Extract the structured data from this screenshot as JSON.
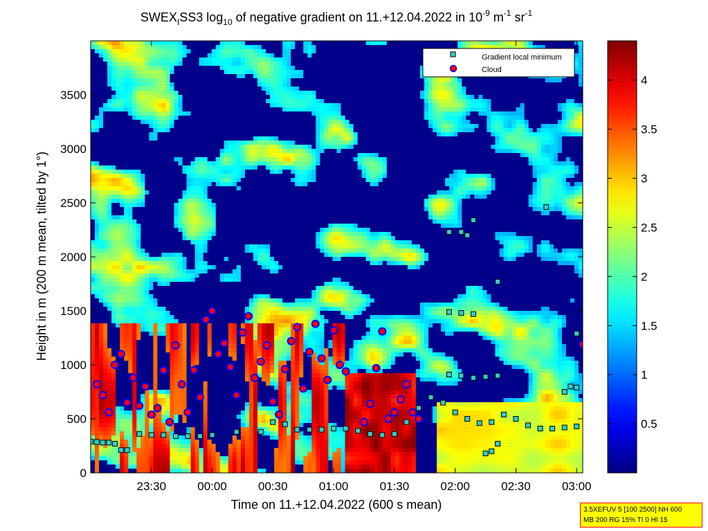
{
  "chart_data": {
    "type": "heatmap",
    "title": {
      "pre": "SWEX",
      "sub1": "I",
      "mid": "SS3 log",
      "sub2": "10",
      "post": " of negative gradient on 11.+12.04.2022 in 10",
      "sup1": "-9",
      "post2": " m",
      "sup2": "-1",
      "post3": " sr",
      "sup3": "-1"
    },
    "xlabel": "Time on 11.+12.04.2022 (600 s mean)",
    "ylabel": "Height in m (200 m mean, tilted by 1°)",
    "x_ticks": [
      "23:30",
      "00:00",
      "00:30",
      "01:00",
      "01:30",
      "02:00",
      "02:30",
      "03:00"
    ],
    "x_tick_hours": [
      23.5,
      24.0,
      24.5,
      25.0,
      25.5,
      26.0,
      26.5,
      27.0
    ],
    "xlim_hours": [
      23.0,
      27.05
    ],
    "y_ticks": [
      0,
      500,
      1000,
      1500,
      2000,
      2500,
      3000,
      3500
    ],
    "ylim": [
      0,
      4000
    ],
    "colorbar": {
      "ticks": [
        "0.5",
        "1",
        "1.5",
        "2",
        "2.5",
        "3",
        "3.5",
        "4"
      ],
      "tick_values": [
        0.5,
        1,
        1.5,
        2,
        2.5,
        3,
        3.5,
        4
      ],
      "range": [
        0,
        4.4
      ],
      "colormap": "jet"
    },
    "legend": {
      "position": "top-right",
      "entries": [
        {
          "label": "Gradient local minimum",
          "marker": "square",
          "color": "#33cccc"
        },
        {
          "label": "Cloud",
          "marker": "circle",
          "color": "#ff0000",
          "edge": "#0000ff"
        }
      ]
    },
    "series": [
      {
        "name": "Gradient local minimum",
        "points": [
          [
            23.0,
            290
          ],
          [
            23.05,
            285
          ],
          [
            23.1,
            280
          ],
          [
            23.15,
            280
          ],
          [
            23.2,
            270
          ],
          [
            23.25,
            210
          ],
          [
            23.3,
            210
          ],
          [
            23.4,
            360
          ],
          [
            23.5,
            350
          ],
          [
            23.6,
            350
          ],
          [
            23.7,
            340
          ],
          [
            23.8,
            340
          ],
          [
            23.9,
            340
          ],
          [
            24.0,
            350
          ],
          [
            24.2,
            380
          ],
          [
            24.4,
            380
          ],
          [
            24.5,
            470
          ],
          [
            24.6,
            450
          ],
          [
            24.7,
            400
          ],
          [
            24.8,
            400
          ],
          [
            24.9,
            400
          ],
          [
            25.0,
            410
          ],
          [
            25.1,
            410
          ],
          [
            25.2,
            390
          ],
          [
            25.3,
            360
          ],
          [
            25.4,
            350
          ],
          [
            25.5,
            360
          ],
          [
            25.6,
            470
          ],
          [
            25.7,
            600
          ],
          [
            25.8,
            700
          ],
          [
            25.9,
            650
          ],
          [
            26.0,
            560
          ],
          [
            26.1,
            500
          ],
          [
            26.2,
            460
          ],
          [
            26.3,
            470
          ],
          [
            26.4,
            540
          ],
          [
            26.5,
            500
          ],
          [
            26.6,
            440
          ],
          [
            26.7,
            410
          ],
          [
            26.8,
            410
          ],
          [
            26.9,
            420
          ],
          [
            27.0,
            430
          ],
          [
            25.95,
            2230
          ],
          [
            26.05,
            2230
          ],
          [
            26.1,
            2200
          ],
          [
            26.15,
            2340
          ],
          [
            26.35,
            1770
          ],
          [
            26.75,
            2460
          ],
          [
            25.95,
            1490
          ],
          [
            26.05,
            1480
          ],
          [
            26.15,
            1470
          ],
          [
            25.95,
            910
          ],
          [
            26.05,
            900
          ],
          [
            26.15,
            880
          ],
          [
            26.25,
            890
          ],
          [
            26.35,
            900
          ],
          [
            27.0,
            1290
          ],
          [
            27.1,
            1290
          ],
          [
            26.9,
            750
          ],
          [
            26.95,
            800
          ],
          [
            27.0,
            790
          ],
          [
            26.25,
            180
          ],
          [
            26.3,
            200
          ],
          [
            26.35,
            270
          ]
        ]
      },
      {
        "name": "Cloud",
        "points": [
          [
            23.05,
            820
          ],
          [
            23.1,
            720
          ],
          [
            23.15,
            560
          ],
          [
            23.2,
            1000
          ],
          [
            23.25,
            1100
          ],
          [
            23.3,
            650
          ],
          [
            23.35,
            880
          ],
          [
            23.4,
            620
          ],
          [
            23.45,
            800
          ],
          [
            23.5,
            540
          ],
          [
            23.55,
            600
          ],
          [
            23.6,
            950
          ],
          [
            23.65,
            470
          ],
          [
            23.7,
            1180
          ],
          [
            23.75,
            820
          ],
          [
            23.8,
            560
          ],
          [
            23.85,
            950
          ],
          [
            23.9,
            700
          ],
          [
            23.95,
            1420
          ],
          [
            24.0,
            1500
          ],
          [
            24.05,
            1100
          ],
          [
            24.1,
            1200
          ],
          [
            24.15,
            980
          ],
          [
            24.2,
            720
          ],
          [
            24.25,
            1300
          ],
          [
            24.3,
            1450
          ],
          [
            24.35,
            880
          ],
          [
            24.4,
            1030
          ],
          [
            24.45,
            1180
          ],
          [
            24.5,
            660
          ],
          [
            24.55,
            540
          ],
          [
            24.6,
            960
          ],
          [
            24.65,
            1220
          ],
          [
            24.7,
            1350
          ],
          [
            24.75,
            780
          ],
          [
            24.8,
            1120
          ],
          [
            24.85,
            1380
          ],
          [
            24.9,
            1060
          ],
          [
            24.95,
            860
          ],
          [
            25.0,
            1320
          ],
          [
            25.05,
            1000
          ],
          [
            25.1,
            940
          ],
          [
            25.25,
            470
          ],
          [
            25.3,
            640
          ],
          [
            25.35,
            970
          ],
          [
            25.4,
            1310
          ],
          [
            25.45,
            500
          ],
          [
            25.5,
            560
          ],
          [
            25.55,
            680
          ],
          [
            25.6,
            820
          ],
          [
            25.65,
            560
          ],
          [
            25.7,
            500
          ],
          [
            27.05,
            1190
          ],
          [
            27.1,
            1200
          ]
        ]
      }
    ]
  },
  "info_box": {
    "line1": "3.5XEFUV 5 [100 2500] NH 600",
    "line2": "MB 200 RG 15% TI 0 HI 15"
  }
}
